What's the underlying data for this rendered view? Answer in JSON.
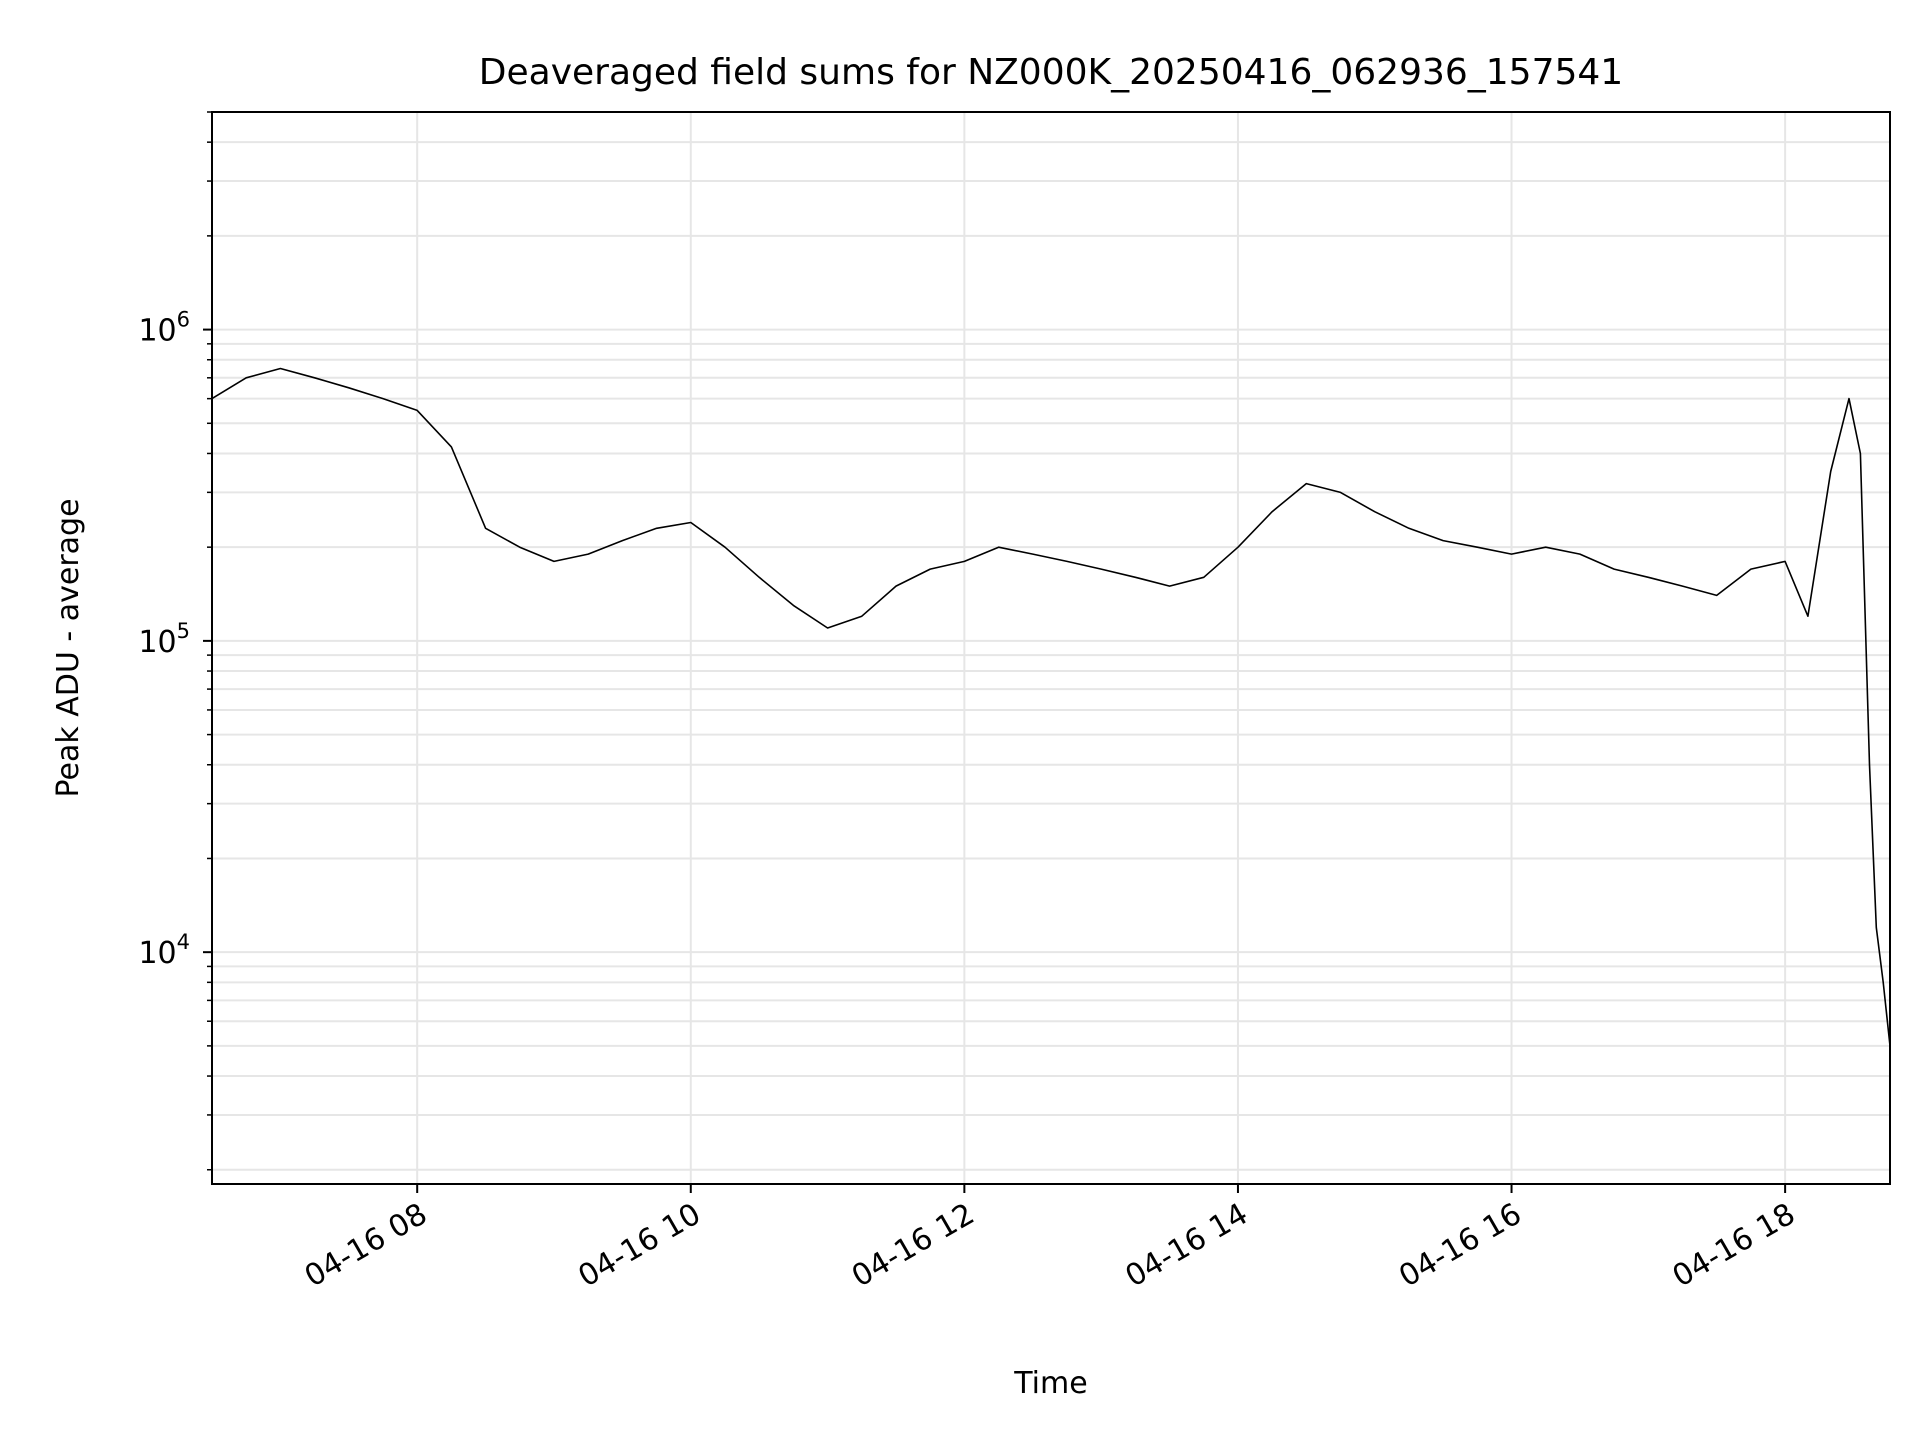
{
  "chart_data": {
    "type": "line",
    "title": "Deaveraged field sums for NZ000K_20250416_062936_157541",
    "xlabel": "Time",
    "ylabel": "Peak ADU - average",
    "y_scale": "log",
    "ylim": [
      1800,
      5000000
    ],
    "xlim": [
      "2025-04-16 06:30",
      "2025-04-16 18:46"
    ],
    "x_ticks": [
      {
        "value": "2025-04-16 08:00",
        "label": "04-16 08"
      },
      {
        "value": "2025-04-16 10:00",
        "label": "04-16 10"
      },
      {
        "value": "2025-04-16 12:00",
        "label": "04-16 12"
      },
      {
        "value": "2025-04-16 14:00",
        "label": "04-16 14"
      },
      {
        "value": "2025-04-16 16:00",
        "label": "04-16 16"
      },
      {
        "value": "2025-04-16 18:00",
        "label": "04-16 18"
      }
    ],
    "y_ticks": [
      {
        "value": 10000,
        "base": "10",
        "exp": "4"
      },
      {
        "value": 100000,
        "base": "10",
        "exp": "5"
      },
      {
        "value": 1000000,
        "base": "10",
        "exp": "6"
      }
    ],
    "grid": true,
    "minor_grid": true,
    "line_color": "#000000",
    "grid_color": "#e6e6e6",
    "series": [
      {
        "x": [
          "2025-04-16 06:30",
          "2025-04-16 06:45",
          "2025-04-16 07:00",
          "2025-04-16 07:15",
          "2025-04-16 07:30",
          "2025-04-16 07:45",
          "2025-04-16 08:00",
          "2025-04-16 08:15",
          "2025-04-16 08:30",
          "2025-04-16 08:45",
          "2025-04-16 09:00",
          "2025-04-16 09:15",
          "2025-04-16 09:30",
          "2025-04-16 09:45",
          "2025-04-16 10:00",
          "2025-04-16 10:15",
          "2025-04-16 10:30",
          "2025-04-16 10:45",
          "2025-04-16 11:00",
          "2025-04-16 11:15",
          "2025-04-16 11:30",
          "2025-04-16 11:45",
          "2025-04-16 12:00",
          "2025-04-16 12:15",
          "2025-04-16 12:30",
          "2025-04-16 12:45",
          "2025-04-16 13:00",
          "2025-04-16 13:15",
          "2025-04-16 13:30",
          "2025-04-16 13:45",
          "2025-04-16 14:00",
          "2025-04-16 14:15",
          "2025-04-16 14:30",
          "2025-04-16 14:45",
          "2025-04-16 15:00",
          "2025-04-16 15:15",
          "2025-04-16 15:30",
          "2025-04-16 15:45",
          "2025-04-16 16:00",
          "2025-04-16 16:15",
          "2025-04-16 16:30",
          "2025-04-16 16:45",
          "2025-04-16 17:00",
          "2025-04-16 17:15",
          "2025-04-16 17:30",
          "2025-04-16 17:45",
          "2025-04-16 18:00",
          "2025-04-16 18:10",
          "2025-04-16 18:20",
          "2025-04-16 18:28",
          "2025-04-16 18:33",
          "2025-04-16 18:37",
          "2025-04-16 18:40",
          "2025-04-16 18:43",
          "2025-04-16 18:46"
        ],
        "values": [
          600000,
          700000,
          750000,
          700000,
          650000,
          600000,
          550000,
          420000,
          230000,
          200000,
          180000,
          190000,
          210000,
          230000,
          240000,
          200000,
          160000,
          130000,
          110000,
          120000,
          150000,
          170000,
          180000,
          200000,
          190000,
          180000,
          170000,
          160000,
          150000,
          160000,
          200000,
          260000,
          320000,
          300000,
          260000,
          230000,
          210000,
          200000,
          190000,
          200000,
          190000,
          170000,
          160000,
          150000,
          140000,
          170000,
          180000,
          120000,
          350000,
          600000,
          400000,
          40000,
          12000,
          8000,
          5000
        ]
      }
    ]
  }
}
